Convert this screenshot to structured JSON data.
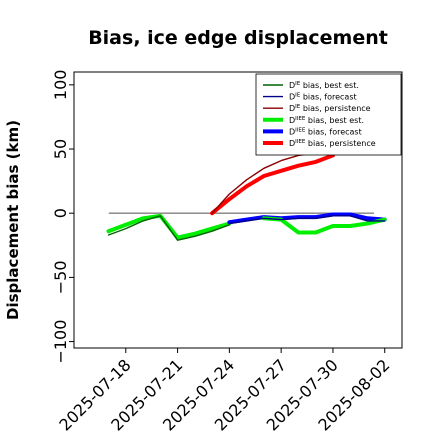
{
  "chart_data": {
    "type": "line",
    "title": "Bias, ice edge displacement",
    "xlabel": "",
    "ylabel": "Displacement bias (km)",
    "ylim": [
      -105,
      110
    ],
    "yticks": [
      -100,
      -50,
      0,
      50,
      100
    ],
    "ytick_labels": [
      "−100",
      "−50",
      "0",
      "50",
      "100"
    ],
    "xlim": [
      "2025-07-15",
      "2025-08-03"
    ],
    "xticks": [
      "2025-07-18",
      "2025-07-21",
      "2025-07-24",
      "2025-07-27",
      "2025-07-30",
      "2025-08-02"
    ],
    "xtick_labels": [
      "2025-07-18",
      "2025-07-21",
      "2025-07-24",
      "2025-07-27",
      "2025-07-30",
      "2025-08-02"
    ],
    "highlight_tick": "2025-07-24",
    "highlight_color": "#228b22",
    "grid": false,
    "legend_position": "top-right",
    "zero_line": 0,
    "series": [
      {
        "name": "D^IE bias, best est.",
        "name_base": "D",
        "name_sup": "IE",
        "name_rest": " bias, best est.",
        "color": "#006400",
        "linewidth": 1.4,
        "x": [
          "2025-07-17",
          "2025-07-18",
          "2025-07-19",
          "2025-07-20",
          "2025-07-21",
          "2025-07-22",
          "2025-07-23",
          "2025-07-24"
        ],
        "y": [
          -17,
          -12,
          -6,
          -2,
          -21,
          -18,
          -14,
          -9
        ]
      },
      {
        "name": "D^IE bias, forecast",
        "name_base": "D",
        "name_sup": "IE",
        "name_rest": " bias, forecast",
        "color": "#00008b",
        "linewidth": 1.4,
        "x": [
          "2025-07-24",
          "2025-07-25",
          "2025-07-26",
          "2025-07-27",
          "2025-07-28",
          "2025-07-29",
          "2025-07-30",
          "2025-07-31",
          "2025-08-01",
          "2025-08-02"
        ],
        "y": [
          -8,
          -6,
          -4,
          -5,
          -4,
          -4,
          -2,
          -2,
          -6,
          -6
        ]
      },
      {
        "name": "D^IE bias, persistence",
        "name_base": "D",
        "name_sup": "IE",
        "name_rest": " bias, persistence",
        "color": "#8b0000",
        "linewidth": 1.4,
        "x": [
          "2025-07-23",
          "2025-07-24",
          "2025-07-25",
          "2025-07-26",
          "2025-07-27",
          "2025-07-28",
          "2025-07-29",
          "2025-07-30"
        ],
        "y": [
          0,
          15,
          26,
          35,
          41,
          45,
          47,
          52
        ]
      },
      {
        "name": "D^IIEE bias, best est.",
        "name_base": "D",
        "name_sup": "IIEE",
        "name_rest": " bias, best est.",
        "color": "#00ee00",
        "linewidth": 4,
        "x": [
          "2025-07-17",
          "2025-07-18",
          "2025-07-19",
          "2025-07-20",
          "2025-07-21",
          "2025-07-22",
          "2025-07-23",
          "2025-07-24"
        ],
        "y": [
          -14,
          -9,
          -4,
          -2,
          -19,
          -16,
          -12,
          -8
        ]
      },
      {
        "name": "D^IIEE bias, forecast",
        "name_base": "D",
        "name_sup": "IIEE",
        "name_rest": " bias, forecast",
        "color": "#0000ff",
        "linewidth": 4,
        "x": [
          "2025-07-24",
          "2025-07-25",
          "2025-07-26",
          "2025-07-27",
          "2025-07-28",
          "2025-07-29",
          "2025-07-30",
          "2025-07-31",
          "2025-08-01",
          "2025-08-02"
        ],
        "y": [
          -7,
          -5,
          -3,
          -4,
          -3,
          -3,
          -1,
          -1,
          -4,
          -5
        ]
      },
      {
        "name": "D^IIEE bias, persistence",
        "name_base": "D",
        "name_sup": "IIEE",
        "name_rest": " bias, persistence",
        "color": "#ff0000",
        "linewidth": 4,
        "x": [
          "2025-07-23",
          "2025-07-24",
          "2025-07-25",
          "2025-07-26",
          "2025-07-27",
          "2025-07-28",
          "2025-07-29",
          "2025-07-30"
        ],
        "y": [
          0,
          11,
          21,
          29,
          33,
          37,
          40,
          45
        ]
      },
      {
        "name": "",
        "name_base": "",
        "name_sup": "",
        "name_rest": "",
        "color": "#00ee00",
        "linewidth": 4,
        "in_legend": false,
        "x": [
          "2025-07-26",
          "2025-07-27",
          "2025-07-28",
          "2025-07-29",
          "2025-07-30",
          "2025-07-31",
          "2025-08-01",
          "2025-08-02"
        ],
        "y": [
          -4,
          -5,
          -15,
          -15,
          -10,
          -10,
          -8,
          -5
        ]
      }
    ]
  }
}
